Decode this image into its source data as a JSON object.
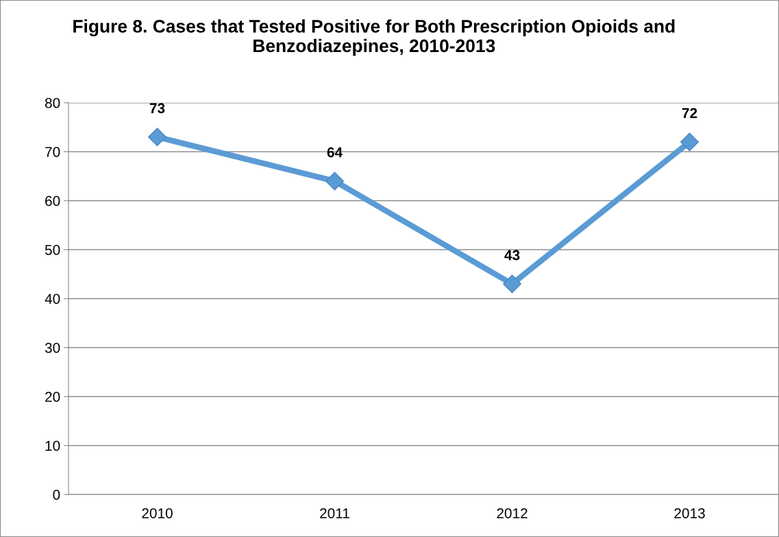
{
  "chart_data": {
    "type": "line",
    "title": "Figure 8. Cases that Tested Positive for Both Prescription Opioids and Benzodiazepines, 2010-2013",
    "categories": [
      "2010",
      "2011",
      "2012",
      "2013"
    ],
    "series": [
      {
        "color": "#5b9bd5",
        "values": [
          73,
          64,
          43,
          72
        ]
      }
    ],
    "ylim": [
      0,
      80
    ],
    "yticks": [
      0,
      10,
      20,
      30,
      40,
      50,
      60,
      70,
      80
    ],
    "grid": "y",
    "marker": "diamond",
    "line_style": "solid",
    "data_labels": true,
    "legend": false
  }
}
